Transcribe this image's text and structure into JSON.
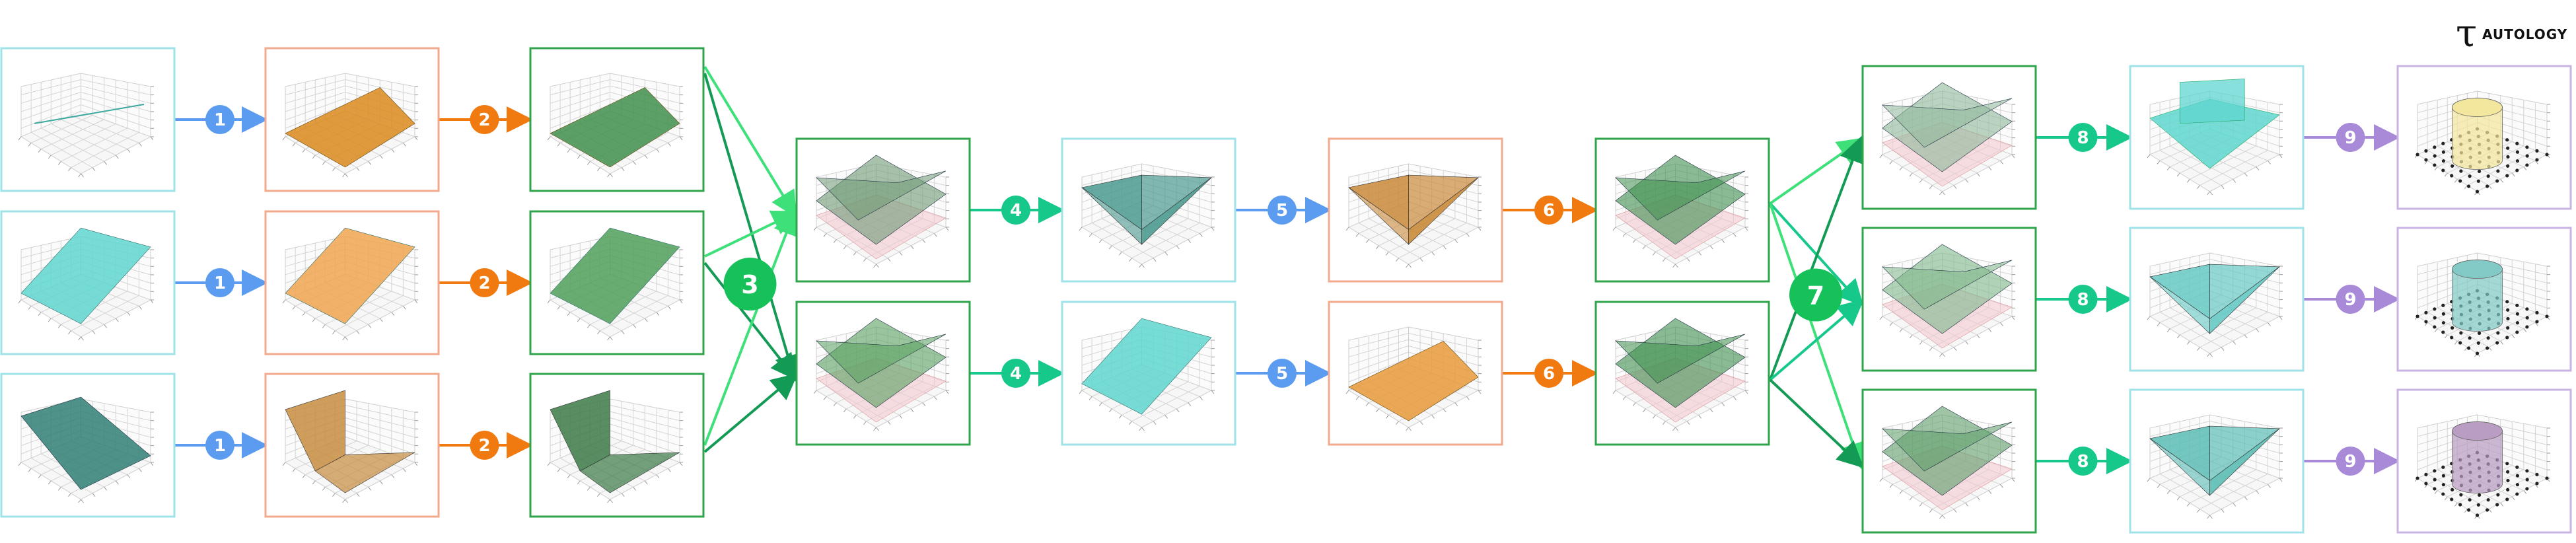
{
  "brand": {
    "logo_text": "AUTOLOGY"
  },
  "colors": {
    "step_1": "#5b9cf0",
    "step_2": "#f07a0f",
    "step_3": "#16c15a",
    "step_4": "#16c98a",
    "step_5": "#5b9cf0",
    "step_6": "#f07a0f",
    "step_7": "#16c15a",
    "step_8": "#16c98a",
    "step_9": "#a88ad8",
    "frame_cyan": "#9fe3e8",
    "frame_orange": "#f2a98c",
    "frame_green": "#2fa44a",
    "frame_purple": "#c9b3e3"
  },
  "steps": [
    {
      "id": "1",
      "label": "1"
    },
    {
      "id": "2",
      "label": "2"
    },
    {
      "id": "3",
      "label": "3"
    },
    {
      "id": "4",
      "label": "4"
    },
    {
      "id": "5",
      "label": "5"
    },
    {
      "id": "6",
      "label": "6"
    },
    {
      "id": "7",
      "label": "7"
    },
    {
      "id": "8",
      "label": "8"
    },
    {
      "id": "9",
      "label": "9"
    }
  ],
  "panels": [
    {
      "id": "c1r1",
      "frame": "cyan",
      "surface": "flat-line",
      "fill": "#3da9a0"
    },
    {
      "id": "c1r2",
      "frame": "cyan",
      "surface": "plane-tilted",
      "fill": "#5fd6cf"
    },
    {
      "id": "c1r3",
      "frame": "cyan",
      "surface": "plane-down",
      "fill": "#2f7f74"
    },
    {
      "id": "c2r1",
      "frame": "orange",
      "surface": "wedge",
      "fill": "#d98a1c"
    },
    {
      "id": "c2r2",
      "frame": "orange",
      "surface": "plane-tilted",
      "fill": "#f0a450"
    },
    {
      "id": "c2r3",
      "frame": "orange",
      "surface": "fold",
      "fill": "#c78c3f"
    },
    {
      "id": "c3r1",
      "frame": "green",
      "surface": "wedge",
      "fill": "#3f8f4e"
    },
    {
      "id": "c3r2",
      "frame": "green",
      "surface": "plane-tilted",
      "fill": "#4f9f5a"
    },
    {
      "id": "c3r3",
      "frame": "green",
      "surface": "fold",
      "fill": "#3b7a45"
    },
    {
      "id": "c4r1",
      "frame": "green",
      "surface": "stacked",
      "fill": "#6f9a74"
    },
    {
      "id": "c4r2",
      "frame": "green",
      "surface": "stacked",
      "fill": "#5aa05f"
    },
    {
      "id": "c5r1",
      "frame": "cyan",
      "surface": "valley",
      "fill": "#4b9a90"
    },
    {
      "id": "c5r2",
      "frame": "cyan",
      "surface": "plane-tilted",
      "fill": "#5fd6cf"
    },
    {
      "id": "c6r1",
      "frame": "orange",
      "surface": "valley",
      "fill": "#c98a3a"
    },
    {
      "id": "c6r2",
      "frame": "orange",
      "surface": "wedge",
      "fill": "#e89a3a"
    },
    {
      "id": "c7r1",
      "frame": "green",
      "surface": "stacked",
      "fill": "#3f8f4e"
    },
    {
      "id": "c7r2",
      "frame": "green",
      "surface": "stacked",
      "fill": "#3f8f4e"
    },
    {
      "id": "c8r1",
      "frame": "green",
      "surface": "stacked",
      "fill": "#8fb89a"
    },
    {
      "id": "c8r2",
      "frame": "green",
      "surface": "stacked",
      "fill": "#7fb78a"
    },
    {
      "id": "c8r3",
      "frame": "green",
      "surface": "stacked",
      "fill": "#5f9f6a"
    },
    {
      "id": "c9r1",
      "frame": "cyan",
      "surface": "dome",
      "fill": "#5fd6cf"
    },
    {
      "id": "c9r2",
      "frame": "cyan",
      "surface": "valley",
      "fill": "#66c9c4"
    },
    {
      "id": "c9r3",
      "frame": "cyan",
      "surface": "valley",
      "fill": "#5bbdb5"
    },
    {
      "id": "c10r1",
      "frame": "purple",
      "surface": "cylinder",
      "fill": "#f3e69a"
    },
    {
      "id": "c10r2",
      "frame": "purple",
      "surface": "cylinder",
      "fill": "#7fc9c4"
    },
    {
      "id": "c10r3",
      "frame": "purple",
      "surface": "cylinder",
      "fill": "#b89ac0"
    }
  ]
}
